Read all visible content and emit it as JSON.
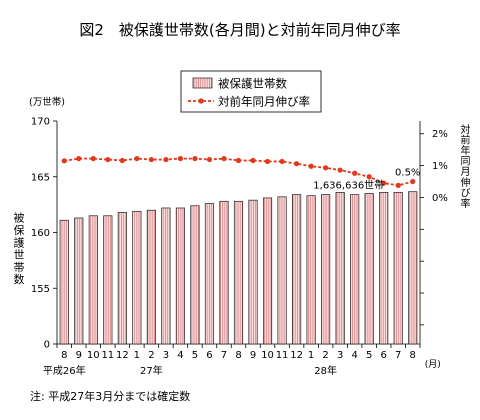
{
  "figure": {
    "note": "注: 平成27年3月分までは確定数"
  },
  "chart_data": {
    "type": "bar",
    "title": "図2　被保護世帯数(各月間)と対前年同月伸び率",
    "categories": [
      "8",
      "9",
      "10",
      "11",
      "12",
      "1",
      "2",
      "3",
      "4",
      "5",
      "6",
      "7",
      "8",
      "9",
      "10",
      "11",
      "12",
      "1",
      "2",
      "3",
      "4",
      "5",
      "6",
      "7",
      "8"
    ],
    "category_unit": "(月)",
    "year_labels": [
      {
        "label": "平成26年",
        "index": 0
      },
      {
        "label": "27年",
        "index": 6
      },
      {
        "label": "28年",
        "index": 18
      }
    ],
    "y_left": {
      "title": "被保護世帯数",
      "unit": "(万世帯)",
      "range": [
        0,
        170
      ],
      "scale_break": [
        0,
        155
      ],
      "ticks": [
        {
          "value": 170,
          "label": "170"
        },
        {
          "value": 165,
          "label": "165"
        },
        {
          "value": 160,
          "label": "160"
        },
        {
          "value": 155,
          "label": "155"
        },
        {
          "value": 0,
          "label": "0"
        }
      ]
    },
    "y_right": {
      "title": "対前年同月伸び率",
      "range": [
        -4.6,
        2.4
      ],
      "ticks": [
        {
          "value": 2,
          "label": "2%"
        },
        {
          "value": 1,
          "label": "1%"
        },
        {
          "value": 0,
          "label": "0%"
        }
      ],
      "minor_ticks": [
        -1,
        -2,
        -3,
        -4
      ]
    },
    "series": [
      {
        "name": "被保護世帯数",
        "type": "bar",
        "axis": "left",
        "values": [
          161.1,
          161.3,
          161.5,
          161.5,
          161.8,
          161.9,
          162.0,
          162.2,
          162.2,
          162.4,
          162.6,
          162.8,
          162.8,
          162.9,
          163.1,
          163.2,
          163.4,
          163.3,
          163.4,
          163.6,
          163.4,
          163.5,
          163.6,
          163.6,
          163.66
        ],
        "fill": "#f8dada",
        "hatch": "#d9868a",
        "stroke": "#1f1f1f"
      },
      {
        "name": "対前年同月伸び率",
        "type": "line",
        "axis": "right",
        "values": [
          1.15,
          1.22,
          1.22,
          1.19,
          1.16,
          1.22,
          1.19,
          1.19,
          1.22,
          1.22,
          1.19,
          1.22,
          1.16,
          1.16,
          1.13,
          1.13,
          1.06,
          0.98,
          0.93,
          0.86,
          0.76,
          0.65,
          0.45,
          0.38,
          0.5
        ],
        "color": "#e4371c",
        "marker": "circle",
        "line_style": "dashed"
      }
    ],
    "annotations": [
      {
        "text": "1,636,636世帯",
        "series": 0,
        "index": 24
      },
      {
        "text": "0.5%",
        "series": 1,
        "index": 24
      }
    ],
    "legend": {
      "position": "top-center",
      "boxed": true
    },
    "grid": false,
    "axis_color": "#000000"
  }
}
